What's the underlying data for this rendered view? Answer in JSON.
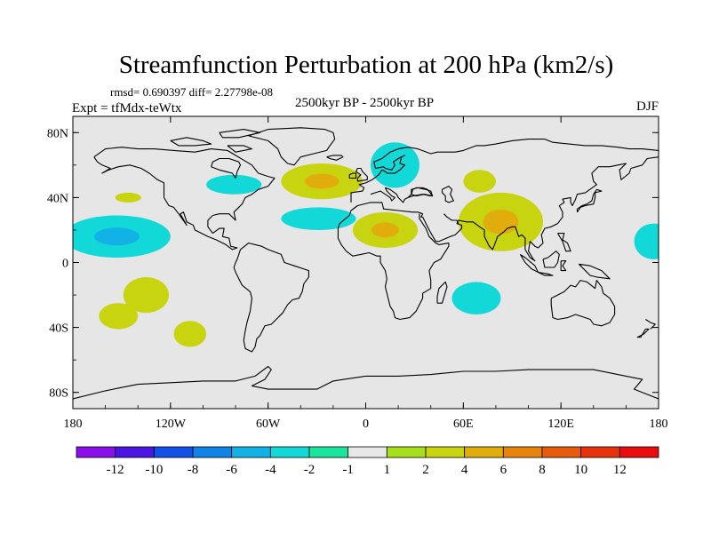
{
  "chart_data": {
    "type": "contour-map",
    "title": "Streamfunction Perturbation at 200 hPa (km2/s)",
    "stats_text": "rmsd= 0.690397 diff= 2.27798e-08",
    "experiment_text": "Expt = tfMdx-teWtx",
    "period_text": "2500kyr BP - 2500kyr BP",
    "season": "DJF",
    "xlim": [
      -180,
      180
    ],
    "ylim": [
      -90,
      90
    ],
    "x_ticks": [
      {
        "value": -180,
        "label": "180"
      },
      {
        "value": -120,
        "label": "120W"
      },
      {
        "value": -60,
        "label": "60W"
      },
      {
        "value": 0,
        "label": "0"
      },
      {
        "value": 60,
        "label": "60E"
      },
      {
        "value": 120,
        "label": "120E"
      },
      {
        "value": 180,
        "label": "180"
      }
    ],
    "y_ticks": [
      {
        "value": 80,
        "label": "80N"
      },
      {
        "value": 40,
        "label": "40N"
      },
      {
        "value": 0,
        "label": "0"
      },
      {
        "value": -40,
        "label": "40S"
      },
      {
        "value": -80,
        "label": "80S"
      }
    ],
    "colorbar": {
      "levels": [
        "-12",
        "-10",
        "-8",
        "-6",
        "-4",
        "-2",
        "-1",
        "1",
        "2",
        "4",
        "6",
        "8",
        "10",
        "12"
      ],
      "colors": [
        "#8a0fe8",
        "#4a15e0",
        "#1250e6",
        "#0f83e6",
        "#12b2e6",
        "#13d8d8",
        "#19e69c",
        "#e8e8e8",
        "#a6e01c",
        "#c8d40f",
        "#e1ad0c",
        "#e8840c",
        "#e85a0c",
        "#e8320c",
        "#e80c0c"
      ]
    },
    "anomalies": [
      {
        "name": "north-pacific-west",
        "lon": -146,
        "lat": 40,
        "rlon": 8,
        "rlat": 3,
        "value": 2,
        "core_value": null
      },
      {
        "name": "east-pacific",
        "lon": -153,
        "lat": 16,
        "rlon": 33,
        "rlat": 13,
        "value": -2,
        "core_value": -4
      },
      {
        "name": "pacific-date-line-east",
        "lon": 177,
        "lat": 13,
        "rlon": 12,
        "rlat": 11,
        "value": -2,
        "core_value": null
      },
      {
        "name": "south-pacific-1",
        "lon": -135,
        "lat": -20,
        "rlon": 14,
        "rlat": 11,
        "value": 2,
        "core_value": null
      },
      {
        "name": "south-pacific-2",
        "lon": -152,
        "lat": -33,
        "rlon": 12,
        "rlat": 8,
        "value": 2,
        "core_value": null
      },
      {
        "name": "south-pacific-3",
        "lon": -108,
        "lat": -44,
        "rlon": 10,
        "rlat": 8,
        "value": 2,
        "core_value": null
      },
      {
        "name": "hudson-bay",
        "lon": -81,
        "lat": 48,
        "rlon": 17,
        "rlat": 6,
        "value": -2,
        "core_value": null
      },
      {
        "name": "north-atlantic",
        "lon": -27,
        "lat": 50,
        "rlon": 25,
        "rlat": 11,
        "value": 2,
        "core_value": 4
      },
      {
        "name": "central-atlantic",
        "lon": -29,
        "lat": 27,
        "rlon": 23,
        "rlat": 7,
        "value": -2,
        "core_value": null
      },
      {
        "name": "scandinavia",
        "lon": 18,
        "lat": 60,
        "rlon": 15,
        "rlat": 14,
        "value": -2,
        "core_value": null
      },
      {
        "name": "north-africa",
        "lon": 12,
        "lat": 20,
        "rlon": 20,
        "rlat": 11,
        "value": 2,
        "core_value": 4
      },
      {
        "name": "west-siberia",
        "lon": 70,
        "lat": 50,
        "rlon": 10,
        "rlat": 7,
        "value": 2,
        "core_value": null
      },
      {
        "name": "south-asia",
        "lon": 83,
        "lat": 25,
        "rlon": 26,
        "rlat": 18,
        "value": 2,
        "core_value": 4
      },
      {
        "name": "south-indian-ocean",
        "lon": 68,
        "lat": -22,
        "rlon": 15,
        "rlat": 10,
        "value": -2,
        "core_value": null
      }
    ]
  }
}
